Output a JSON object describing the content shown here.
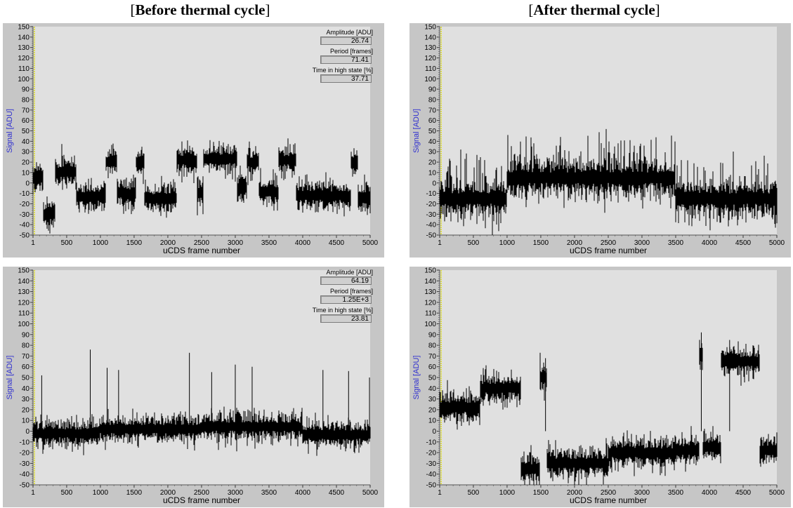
{
  "headings": {
    "left": {
      "open": "[",
      "bold": "Before thermal cycle",
      "close": "]"
    },
    "right": {
      "open": "[",
      "bold": "After thermal cycle",
      "close": "]"
    }
  },
  "colors": {
    "plot_bg": "#e0e0e0",
    "frame": "#c6c6c6",
    "trace": "#000000",
    "ylabel": "#3030d0",
    "yaxis_marker": "#d8d820"
  },
  "chart_data": [
    {
      "type": "line",
      "position": "top-left",
      "xlabel": "uCDS frame number",
      "ylabel": "Signal [ADU]",
      "xlim": [
        1,
        5000
      ],
      "ylim": [
        -50,
        150
      ],
      "xticks": [
        "1",
        "500",
        "1000",
        "1500",
        "2000",
        "2500",
        "3000",
        "3500",
        "4000",
        "4500",
        "5000"
      ],
      "yticks": [
        "150",
        "140",
        "130",
        "120",
        "110",
        "100",
        "90",
        "80",
        "70",
        "60",
        "50",
        "40",
        "30",
        "20",
        "10",
        "0",
        "-10",
        "-20",
        "-30",
        "-40",
        "-50"
      ],
      "noise": 6.5,
      "spike_rate": 0.01,
      "states": [
        [
          1,
          150,
          5
        ],
        [
          150,
          330,
          -30
        ],
        [
          330,
          640,
          10
        ],
        [
          640,
          1080,
          -13
        ],
        [
          1080,
          1250,
          20
        ],
        [
          1250,
          1530,
          -10
        ],
        [
          1530,
          1650,
          20
        ],
        [
          1650,
          2130,
          -15
        ],
        [
          2130,
          2430,
          22
        ],
        [
          2430,
          2530,
          -10
        ],
        [
          2530,
          3030,
          23
        ],
        [
          3030,
          3170,
          -5
        ],
        [
          3170,
          3350,
          20
        ],
        [
          3350,
          3640,
          -8
        ],
        [
          3640,
          3900,
          22
        ],
        [
          3900,
          4710,
          -12
        ],
        [
          4710,
          4820,
          20
        ],
        [
          4820,
          5000,
          -15
        ]
      ],
      "spikes": [],
      "readouts": [
        {
          "label": "Amplitude [ADU]",
          "value": "26.74"
        },
        {
          "label": "Period [frames]",
          "value": "71.41"
        },
        {
          "label": "Time in high state [%]",
          "value": "37.71"
        }
      ]
    },
    {
      "type": "line",
      "position": "top-right",
      "xlabel": "uCDS frame number",
      "ylabel": "Signal [ADU]",
      "xlim": [
        1,
        5000
      ],
      "ylim": [
        -50,
        150
      ],
      "xticks": [
        "1",
        "500",
        "1000",
        "1500",
        "2000",
        "2500",
        "3000",
        "3500",
        "4000",
        "4500",
        "5000"
      ],
      "yticks": [
        "150",
        "140",
        "130",
        "120",
        "110",
        "100",
        "90",
        "80",
        "70",
        "60",
        "50",
        "40",
        "30",
        "20",
        "10",
        "0",
        "-10",
        "-20",
        "-30",
        "-40",
        "-50"
      ],
      "noise": 8,
      "spike_rate": 0.18,
      "spike_height": 32,
      "states": [
        [
          1,
          1000,
          -15
        ],
        [
          1000,
          2500,
          5
        ],
        [
          2500,
          3500,
          5
        ],
        [
          3500,
          5000,
          -15
        ]
      ],
      "spikes": [],
      "readouts": []
    },
    {
      "type": "line",
      "position": "bottom-left",
      "xlabel": "uCDS frame number",
      "ylabel": "Signal [ADU]",
      "xlim": [
        1,
        5000
      ],
      "ylim": [
        -50,
        150
      ],
      "xticks": [
        "1",
        "500",
        "1000",
        "1500",
        "2000",
        "2500",
        "3000",
        "3500",
        "4000",
        "4500",
        "5000"
      ],
      "yticks": [
        "150",
        "140",
        "130",
        "120",
        "110",
        "100",
        "90",
        "80",
        "70",
        "60",
        "50",
        "40",
        "30",
        "20",
        "10",
        "0",
        "-10",
        "-20",
        "-30",
        "-40",
        "-50"
      ],
      "noise": 6,
      "spike_rate": 0,
      "states": [
        [
          1,
          1000,
          -2
        ],
        [
          1000,
          2500,
          2
        ],
        [
          2500,
          4000,
          4
        ],
        [
          4000,
          5000,
          -3
        ]
      ],
      "spikes": [
        [
          130,
          52
        ],
        [
          850,
          76
        ],
        [
          1100,
          59
        ],
        [
          1270,
          57
        ],
        [
          2320,
          73
        ],
        [
          2650,
          55
        ],
        [
          3000,
          62
        ],
        [
          3250,
          60
        ],
        [
          4300,
          57
        ],
        [
          4680,
          56
        ],
        [
          4990,
          50
        ]
      ],
      "readouts": [
        {
          "label": "Amplitude [ADU]",
          "value": "64.19"
        },
        {
          "label": "Period [frames]",
          "value": "1.25E+3"
        },
        {
          "label": "Time in high state [%]",
          "value": "23.81"
        }
      ]
    },
    {
      "type": "line",
      "position": "bottom-right",
      "xlabel": "uCDS frame number",
      "ylabel": "Signal [ADU]",
      "xlim": [
        1,
        5000
      ],
      "ylim": [
        -50,
        150
      ],
      "xticks": [
        "1",
        "500",
        "1000",
        "1500",
        "2000",
        "2500",
        "3000",
        "3500",
        "4000",
        "4500",
        "5000"
      ],
      "yticks": [
        "150",
        "140",
        "130",
        "120",
        "110",
        "100",
        "90",
        "80",
        "70",
        "60",
        "50",
        "40",
        "30",
        "20",
        "10",
        "0",
        "-10",
        "-20",
        "-30",
        "-40",
        "-50"
      ],
      "noise": 6.5,
      "spike_rate": 0,
      "states": [
        [
          1,
          600,
          22
        ],
        [
          600,
          1200,
          40
        ],
        [
          1200,
          1490,
          -35
        ],
        [
          1490,
          1590,
          50
        ],
        [
          1590,
          2500,
          -30
        ],
        [
          2500,
          3500,
          -20
        ],
        [
          3500,
          3850,
          -18
        ],
        [
          3850,
          3900,
          70
        ],
        [
          3900,
          4170,
          -15
        ],
        [
          4170,
          4740,
          65
        ],
        [
          4740,
          5000,
          -18
        ]
      ],
      "spikes": [
        [
          3880,
          92
        ],
        [
          4300,
          85
        ],
        [
          1570,
          68
        ]
      ],
      "readouts": []
    }
  ]
}
